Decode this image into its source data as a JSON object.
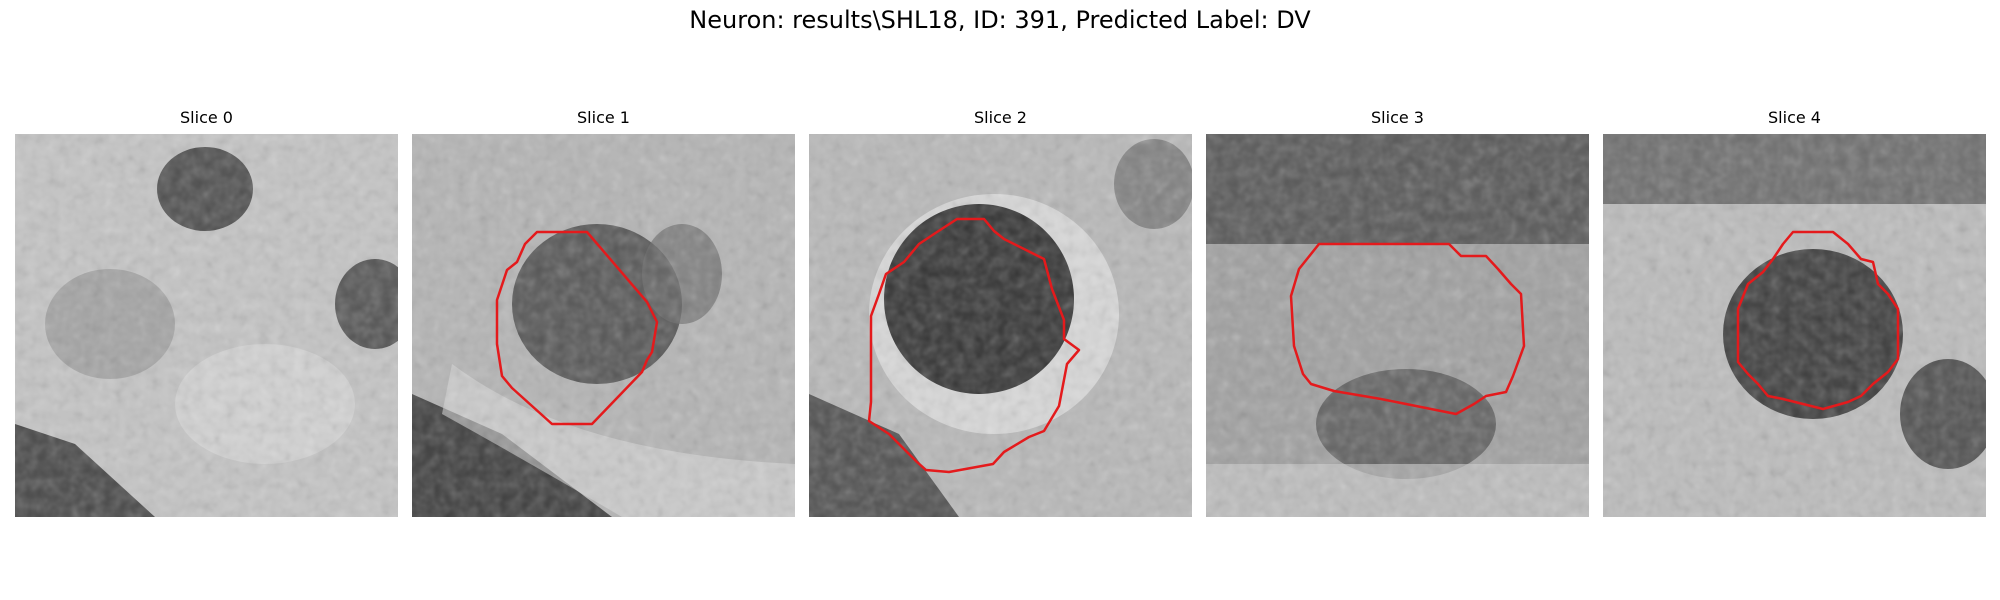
{
  "figure": {
    "title": "Neuron: results\\SHL18, ID: 391, Predicted Label: DV"
  },
  "colors": {
    "contour": "#e41a1c"
  },
  "panels": [
    {
      "title": "Slice 0",
      "has_contour": false
    },
    {
      "title": "Slice 1",
      "has_contour": true
    },
    {
      "title": "Slice 2",
      "has_contour": true
    },
    {
      "title": "Slice 3",
      "has_contour": true
    },
    {
      "title": "Slice 4",
      "has_contour": true
    }
  ]
}
